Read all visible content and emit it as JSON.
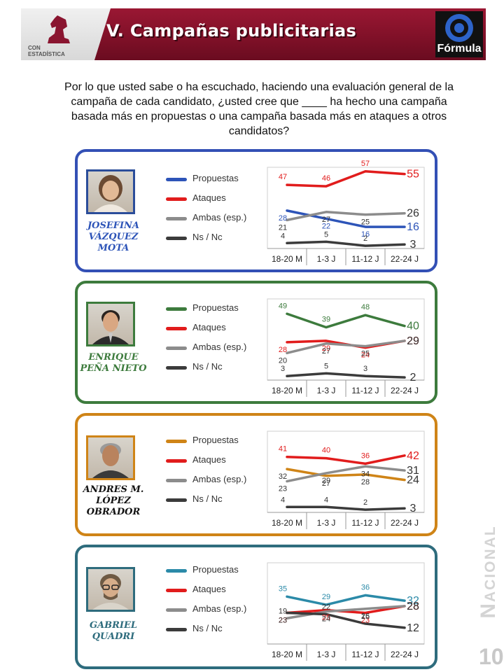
{
  "header": {
    "title": "V. Campañas publicitarias",
    "brand_top": "CON",
    "brand_bottom": "ESTADÍSTICA",
    "partner": "Fórmula"
  },
  "question": "Por lo que usted sabe o ha escuchado, haciendo una evaluación general de la campaña de cada candidato, ¿usted cree que ____ ha hecho una campaña basada más en propuestas o una campaña basada más en ataques a otros candidatos?",
  "side_label": "Nacional",
  "page_number": "10",
  "legend": [
    "Propuestas",
    "Ataques",
    "Ambas (esp.)",
    "Ns / Nc"
  ],
  "chart_data": [
    {
      "type": "line",
      "candidate": "JOSEFINA VÁZQUEZ MOTA",
      "categories": [
        "18-20 M",
        "1-3 J",
        "11-12 J",
        "22-24 J"
      ],
      "series": [
        {
          "name": "Propuestas",
          "color": "#2d54b8",
          "values": [
            28,
            22,
            16,
            16
          ]
        },
        {
          "name": "Ataques",
          "color": "#e11c1c",
          "values": [
            47,
            46,
            57,
            55
          ]
        },
        {
          "name": "Ambas (esp.)",
          "color": "#8c8c8c",
          "values": [
            21,
            27,
            25,
            26
          ]
        },
        {
          "name": "Ns / Nc",
          "color": "#3b3b3b",
          "values": [
            4,
            5,
            2,
            3
          ]
        }
      ],
      "label_colors": {
        "Propuestas": "#2d54b8",
        "Ataques": "#e11c1c",
        "Ambas (esp.)": "#333333",
        "Ns / Nc": "#333333"
      }
    },
    {
      "type": "line",
      "candidate": "ENRIQUE PEÑA NIETO",
      "categories": [
        "18-20 M",
        "1-3 J",
        "11-12 J",
        "22-24 J"
      ],
      "series": [
        {
          "name": "Propuestas",
          "color": "#3d7b3d",
          "values": [
            49,
            39,
            48,
            40
          ]
        },
        {
          "name": "Ataques",
          "color": "#e11c1c",
          "values": [
            28,
            29,
            24,
            29
          ]
        },
        {
          "name": "Ambas (esp.)",
          "color": "#8c8c8c",
          "values": [
            20,
            27,
            25,
            29
          ]
        },
        {
          "name": "Ns / Nc",
          "color": "#3b3b3b",
          "values": [
            3,
            5,
            3,
            2
          ]
        }
      ],
      "label_colors": {
        "Propuestas": "#3d7b3d",
        "Ataques": "#e11c1c",
        "Ambas (esp.)": "#333333",
        "Ns / Nc": "#333333"
      }
    },
    {
      "type": "line",
      "candidate": "ANDRES M. LÓPEZ OBRADOR",
      "categories": [
        "18-20 M",
        "1-3 J",
        "11-12 J",
        "22-24 J"
      ],
      "series": [
        {
          "name": "Propuestas",
          "color": "#cf8417",
          "values": [
            32,
            27,
            28,
            24
          ]
        },
        {
          "name": "Ataques",
          "color": "#e11c1c",
          "values": [
            41,
            40,
            36,
            42
          ]
        },
        {
          "name": "Ambas (esp.)",
          "color": "#8c8c8c",
          "values": [
            23,
            29,
            34,
            31
          ]
        },
        {
          "name": "Ns / Nc",
          "color": "#3b3b3b",
          "values": [
            4,
            4,
            2,
            3
          ]
        }
      ],
      "label_colors": {
        "Propuestas": "#333333",
        "Ataques": "#e11c1c",
        "Ambas (esp.)": "#333333",
        "Ns / Nc": "#333333"
      }
    },
    {
      "type": "line",
      "candidate": "GABRIEL QUADRI",
      "categories": [
        "18-20 M",
        "1-3 J",
        "11-12 J",
        "22-24 J"
      ],
      "series": [
        {
          "name": "Propuestas",
          "color": "#2b8aa8",
          "values": [
            35,
            29,
            36,
            32
          ]
        },
        {
          "name": "Ataques",
          "color": "#e11c1c",
          "values": [
            23,
            25,
            23,
            28
          ]
        },
        {
          "name": "Ambas (esp.)",
          "color": "#8c8c8c",
          "values": [
            19,
            24,
            26,
            28
          ]
        },
        {
          "name": "Ns / Nc",
          "color": "#3b3b3b",
          "values": [
            23,
            22,
            15,
            12
          ]
        }
      ],
      "label_colors": {
        "Propuestas": "#2b8aa8",
        "Ataques": "#e11c1c",
        "Ambas (esp.)": "#333333",
        "Ns / Nc": "#333333"
      }
    }
  ]
}
